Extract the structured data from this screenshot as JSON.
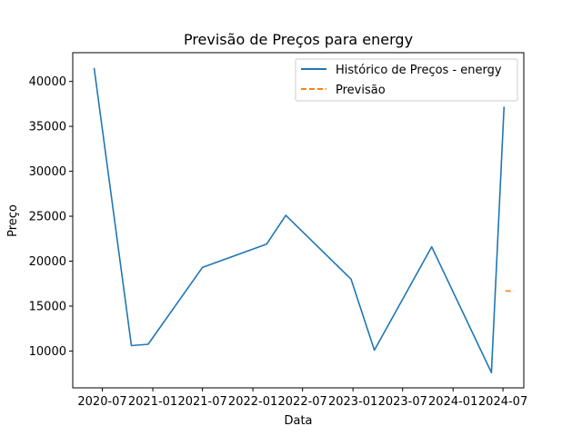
{
  "chart_data": {
    "type": "line",
    "title": "Previsão de Preços para energy",
    "xlabel": "Data",
    "ylabel": "Preço",
    "grid": false,
    "legend_position": "top-right",
    "x_ticks": [
      "2020-07",
      "2021-01",
      "2021-07",
      "2022-01",
      "2022-07",
      "2023-01",
      "2023-07",
      "2024-01",
      "2024-07"
    ],
    "x_range": [
      "2020-03-15",
      "2024-09-15"
    ],
    "y_ticks": [
      10000,
      15000,
      20000,
      25000,
      30000,
      35000,
      40000
    ],
    "ylim": [
      5900,
      43200
    ],
    "series": [
      {
        "name": "Histórico de Preços - energy",
        "style": "solid",
        "color": "#1f77b4",
        "points": [
          {
            "x": "2020-06-01",
            "y": 41500
          },
          {
            "x": "2020-10-15",
            "y": 10600
          },
          {
            "x": "2020-12-15",
            "y": 10750
          },
          {
            "x": "2021-07-01",
            "y": 19300
          },
          {
            "x": "2022-02-20",
            "y": 21900
          },
          {
            "x": "2022-05-01",
            "y": 25100
          },
          {
            "x": "2022-12-25",
            "y": 18000
          },
          {
            "x": "2023-03-20",
            "y": 10100
          },
          {
            "x": "2023-10-15",
            "y": 21600
          },
          {
            "x": "2024-05-20",
            "y": 7600
          },
          {
            "x": "2024-07-05",
            "y": 37200
          }
        ]
      },
      {
        "name": "Previsão",
        "style": "dashed",
        "color": "#ff7f0e",
        "points": [
          {
            "x": "2024-07-10",
            "y": 16700
          },
          {
            "x": "2024-08-10",
            "y": 16650
          }
        ]
      }
    ]
  }
}
